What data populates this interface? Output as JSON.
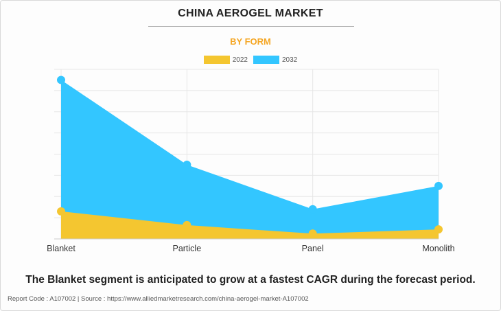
{
  "header": {
    "title": "CHINA AEROGEL MARKET",
    "subtitle": "BY FORM"
  },
  "colors": {
    "accent": "#f5a623",
    "series_2022": "#f4c630",
    "series_2032": "#33c6ff"
  },
  "chart_data": {
    "type": "area",
    "title": "CHINA AEROGEL MARKET",
    "subtitle": "BY FORM",
    "categories": [
      "Blanket",
      "Particle",
      "Panel",
      "Monolith"
    ],
    "series": [
      {
        "name": "2032",
        "color": "#33c6ff",
        "values": [
          7.5,
          3.5,
          1.4,
          2.5
        ]
      },
      {
        "name": "2022",
        "color": "#f4c630",
        "values": [
          1.3,
          0.65,
          0.25,
          0.45
        ]
      }
    ],
    "ylim": [
      0,
      8
    ],
    "grid": true,
    "legend": "top-center",
    "xlabel": "",
    "ylabel": ""
  },
  "caption": "The Blanket segment is anticipated to grow at a fastest CAGR during the forecast period.",
  "footer": "Report Code : A107002  |  Source : https://www.alliedmarketresearch.com/china-aerogel-market-A107002"
}
